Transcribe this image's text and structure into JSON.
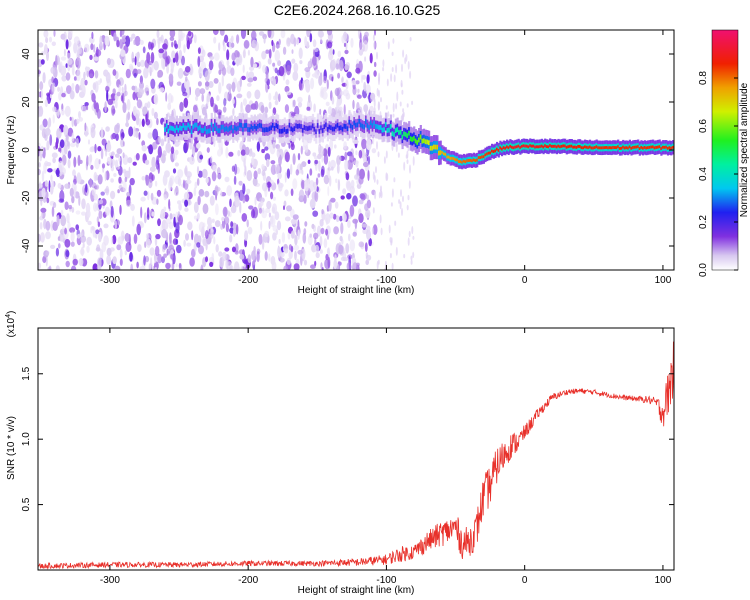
{
  "title": "C2E6.2024.268.16.10.G25",
  "chart_data": [
    {
      "type": "heatmap",
      "xlabel": "Height of straight line (km)",
      "ylabel": "Frequency (Hz)",
      "xlim": [
        -352,
        108
      ],
      "ylim": [
        -50,
        50
      ],
      "x_ticks": [
        -300,
        -200,
        -100,
        0,
        100
      ],
      "x_tick_labels": [
        "-300",
        "-200",
        "-100",
        "0",
        "100"
      ],
      "y_ticks": [
        -40,
        -20,
        0,
        20,
        40
      ],
      "y_tick_labels": [
        "-40",
        "-20",
        "0",
        "20",
        "40"
      ],
      "colorbar": {
        "label": "Normalized spectral amplitude",
        "range": [
          0,
          1
        ],
        "ticks": [
          0.0,
          0.2,
          0.4,
          0.6,
          0.8
        ],
        "tick_labels": [
          "0.0",
          "0.2",
          "0.4",
          "0.6",
          "0.8"
        ]
      },
      "noise_region_x": [
        -352,
        -120
      ],
      "signal_band": {
        "x": [
          -260,
          -220,
          -150,
          -110,
          -90,
          -75,
          -65,
          -55,
          -45,
          -35,
          -25,
          -15,
          0,
          20,
          50,
          80,
          108
        ],
        "freq": [
          9,
          9,
          9,
          11,
          7,
          4,
          1,
          -3,
          -5,
          -4,
          -1,
          1,
          1.5,
          1.5,
          1,
          1,
          1
        ],
        "amplitude": [
          0.35,
          0.3,
          0.2,
          0.3,
          0.45,
          0.6,
          0.7,
          0.75,
          0.8,
          0.82,
          0.85,
          0.88,
          0.9,
          0.88,
          0.85,
          0.85,
          0.85
        ]
      }
    },
    {
      "type": "line",
      "xlabel": "Height of straight line (km)",
      "ylabel": "SNR (10 * v/v)",
      "y_scale_label": "(x10",
      "y_scale_exponent": "4",
      "y_scale_close": ")",
      "xlim": [
        -352,
        108
      ],
      "ylim": [
        0,
        1.85
      ],
      "x_ticks": [
        -300,
        -200,
        -100,
        0,
        100
      ],
      "x_tick_labels": [
        "-300",
        "-200",
        "-100",
        "0",
        "100"
      ],
      "y_ticks": [
        0.5,
        1.0,
        1.5
      ],
      "y_tick_labels": [
        "0.5",
        "1.0",
        "1.5"
      ],
      "series": [
        {
          "color": "#e8302a",
          "x": [
            -352,
            -300,
            -250,
            -200,
            -150,
            -120,
            -100,
            -90,
            -80,
            -70,
            -60,
            -55,
            -50,
            -45,
            -40,
            -35,
            -30,
            -25,
            -20,
            -15,
            -10,
            -5,
            0,
            10,
            20,
            30,
            40,
            50,
            60,
            70,
            80,
            90,
            95,
            100,
            105,
            108
          ],
          "y": [
            0.03,
            0.04,
            0.04,
            0.05,
            0.05,
            0.06,
            0.08,
            0.12,
            0.14,
            0.22,
            0.28,
            0.3,
            0.33,
            0.2,
            0.22,
            0.3,
            0.55,
            0.65,
            0.8,
            0.88,
            0.95,
            0.98,
            1.05,
            1.2,
            1.32,
            1.36,
            1.37,
            1.36,
            1.34,
            1.32,
            1.31,
            1.3,
            1.28,
            1.2,
            1.4,
            1.6
          ],
          "noise": [
            0.02,
            0.02,
            0.02,
            0.02,
            0.02,
            0.03,
            0.04,
            0.06,
            0.06,
            0.08,
            0.1,
            0.1,
            0.12,
            0.12,
            0.12,
            0.14,
            0.16,
            0.16,
            0.14,
            0.12,
            0.1,
            0.08,
            0.06,
            0.04,
            0.03,
            0.02,
            0.02,
            0.02,
            0.02,
            0.02,
            0.02,
            0.03,
            0.04,
            0.12,
            0.2,
            0.3
          ]
        }
      ]
    }
  ]
}
